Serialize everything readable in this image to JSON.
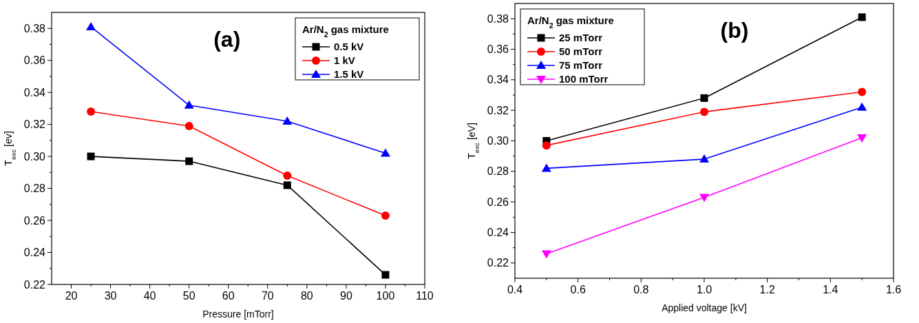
{
  "chart_data": [
    {
      "type": "line",
      "annotations": [
        "(a)"
      ],
      "xlabel": "Pressure [mTorr]",
      "ylabel": "T$_{exc}$ [ev]",
      "legend_title": "Ar/N$_{2}$ gas mixture",
      "legend": "top right",
      "grid": false,
      "x": [
        25,
        50,
        75,
        100
      ],
      "xlim": [
        15,
        110
      ],
      "xticks": [
        20,
        {
          "value": 25,
          "label": null
        },
        30,
        {
          "value": 35,
          "label": null
        },
        40,
        {
          "value": 45,
          "label": null
        },
        50,
        {
          "value": 55,
          "label": null
        },
        60,
        {
          "value": 65,
          "label": null
        },
        70,
        {
          "value": 75,
          "label": null
        },
        80,
        {
          "value": 85,
          "label": null
        },
        90,
        {
          "value": 95,
          "label": null
        },
        100,
        {
          "value": 105,
          "label": null
        },
        110
      ],
      "ylim": [
        0.22,
        0.39
      ],
      "yticks": [
        0.22,
        {
          "value": 0.23,
          "label": null
        },
        0.24,
        {
          "value": 0.25,
          "label": null
        },
        0.26,
        {
          "value": 0.27,
          "label": null
        },
        0.28,
        {
          "value": 0.29,
          "label": null
        },
        {
          "value": 0.3,
          "label": "0.30"
        },
        {
          "value": 0.31,
          "label": null
        },
        0.32,
        {
          "value": 0.33,
          "label": null
        },
        0.34,
        {
          "value": 0.35,
          "label": null
        },
        0.36,
        {
          "value": 0.37,
          "label": null
        },
        0.38
      ],
      "series": [
        {
          "name": "0.5 kV",
          "color": "#000000",
          "marker": "square",
          "values": [
            0.3,
            0.297,
            0.282,
            0.226
          ]
        },
        {
          "name": "1 kV",
          "color": "#ff0000",
          "marker": "circle",
          "values": [
            0.328,
            0.319,
            0.288,
            0.263
          ]
        },
        {
          "name": "1.5 kV",
          "color": "#0000ff",
          "marker": "triangle",
          "values": [
            0.381,
            0.332,
            0.322,
            0.302
          ]
        }
      ]
    },
    {
      "type": "line",
      "annotations": [
        "(b)"
      ],
      "xlabel": "Applied voltage [kV]",
      "ylabel": "T$_{exc}$ [eV]",
      "legend_title": "Ar/N$_{2}$ gas mixture",
      "legend": "top left",
      "grid": false,
      "x": [
        0.5,
        1.0,
        1.5
      ],
      "xlim": [
        0.4,
        1.6
      ],
      "xticks": [
        {
          "value": 0.4,
          "label": "0.4"
        },
        {
          "value": 0.5,
          "label": null
        },
        {
          "value": 0.6,
          "label": "0.6"
        },
        {
          "value": 0.7,
          "label": null
        },
        {
          "value": 0.8,
          "label": "0.8"
        },
        {
          "value": 0.9,
          "label": null
        },
        {
          "value": 1.0,
          "label": "1.0"
        },
        {
          "value": 1.1,
          "label": null
        },
        {
          "value": 1.2,
          "label": "1.2"
        },
        {
          "value": 1.3,
          "label": null
        },
        {
          "value": 1.4,
          "label": "1.4"
        },
        {
          "value": 1.5,
          "label": null
        },
        {
          "value": 1.6,
          "label": "1.6"
        }
      ],
      "ylim": [
        0.21,
        0.39
      ],
      "yticks": [
        0.22,
        {
          "value": 0.23,
          "label": null
        },
        0.24,
        {
          "value": 0.25,
          "label": null
        },
        0.26,
        {
          "value": 0.27,
          "label": null
        },
        0.28,
        {
          "value": 0.29,
          "label": null
        },
        {
          "value": 0.3,
          "label": "0.30"
        },
        {
          "value": 0.31,
          "label": null
        },
        0.32,
        {
          "value": 0.33,
          "label": null
        },
        0.34,
        {
          "value": 0.35,
          "label": null
        },
        0.36,
        {
          "value": 0.37,
          "label": null
        },
        0.38
      ],
      "series": [
        {
          "name": "25 mTorr",
          "color": "#000000",
          "marker": "square",
          "values": [
            0.3,
            0.328,
            0.381
          ]
        },
        {
          "name": "50 mTorr",
          "color": "#ff0000",
          "marker": "circle",
          "values": [
            0.297,
            0.319,
            0.332
          ]
        },
        {
          "name": "75 mTorr",
          "color": "#0000ff",
          "marker": "triangle",
          "values": [
            0.282,
            0.288,
            0.322
          ]
        },
        {
          "name": "100 mTorr",
          "color": "#ff00ff",
          "marker": "triangle-down",
          "values": [
            0.226,
            0.263,
            0.302
          ]
        }
      ]
    }
  ]
}
